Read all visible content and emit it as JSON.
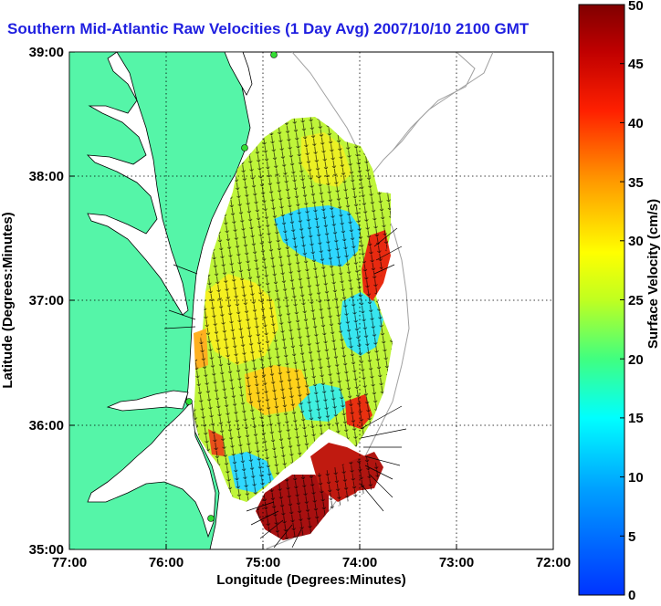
{
  "title": "Southern Mid-Atlantic Raw Velocities (1 Day Avg) 2007/10/10 2100 GMT",
  "map": {
    "xlabel": "Longitude (Degrees:Minutes)",
    "ylabel": "Latitude (Degrees:Minutes)",
    "x_ticks": [
      "77:00",
      "76:00",
      "75:00",
      "74:00",
      "73:00",
      "72:00"
    ],
    "y_ticks": [
      "39:00",
      "38:00",
      "37:00",
      "36:00",
      "35:00"
    ],
    "lon_range": [
      -77,
      -72
    ],
    "lat_range": [
      35,
      39
    ],
    "grid": "dotted",
    "land_color": "#55f5a8",
    "water_color": "#ffffff",
    "station_color": "#33dd33"
  },
  "colorbar": {
    "label": "Surface Velocity (cm/s)",
    "ticks": [
      "0",
      "5",
      "10",
      "15",
      "20",
      "25",
      "30",
      "35",
      "40",
      "45",
      "50"
    ],
    "range": [
      0,
      50
    ],
    "colormap": "jet"
  }
}
